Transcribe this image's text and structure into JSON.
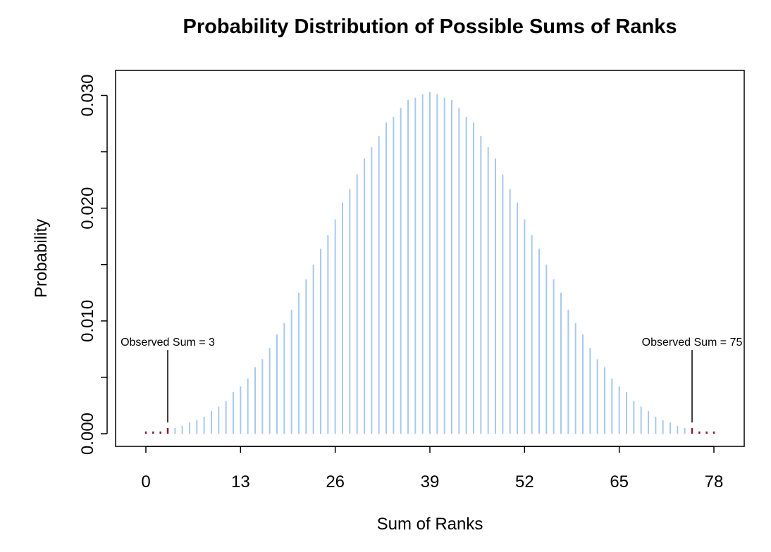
{
  "chart_data": {
    "type": "bar",
    "title": "Probability Distribution of Possible Sums of Ranks",
    "xlabel": "Sum of Ranks",
    "ylabel": "Probability",
    "xlim": [
      0,
      78
    ],
    "ylim": [
      0,
      0.0305
    ],
    "x_ticks": [
      0,
      13,
      26,
      39,
      52,
      65,
      78
    ],
    "y_ticks": [
      0.0,
      0.01,
      0.02,
      0.03
    ],
    "y_tick_labels": [
      "0.000",
      "0.010",
      "0.020",
      "0.030"
    ],
    "x": [
      0,
      1,
      2,
      3,
      4,
      5,
      6,
      7,
      8,
      9,
      10,
      11,
      12,
      13,
      14,
      15,
      16,
      17,
      18,
      19,
      20,
      21,
      22,
      23,
      24,
      25,
      26,
      27,
      28,
      29,
      30,
      31,
      32,
      33,
      34,
      35,
      36,
      37,
      38,
      39,
      40,
      41,
      42,
      43,
      44,
      45,
      46,
      47,
      48,
      49,
      50,
      51,
      52,
      53,
      54,
      55,
      56,
      57,
      58,
      59,
      60,
      61,
      62,
      63,
      64,
      65,
      66,
      67,
      68,
      69,
      70,
      71,
      72,
      73,
      74,
      75,
      76,
      77,
      78
    ],
    "values": [
      0.0002,
      0.0002,
      0.0002,
      0.0005,
      0.0005,
      0.0007,
      0.001,
      0.0012,
      0.0015,
      0.002,
      0.0024,
      0.0029,
      0.0037,
      0.0042,
      0.0049,
      0.0059,
      0.0066,
      0.0076,
      0.0088,
      0.0098,
      0.011,
      0.0125,
      0.0137,
      0.015,
      0.0164,
      0.0176,
      0.019,
      0.0205,
      0.0217,
      0.023,
      0.0244,
      0.0254,
      0.0264,
      0.0276,
      0.0281,
      0.0289,
      0.0296,
      0.0298,
      0.0301,
      0.0303,
      0.0301,
      0.0298,
      0.0296,
      0.0289,
      0.0281,
      0.0276,
      0.0264,
      0.0254,
      0.0244,
      0.023,
      0.0217,
      0.0205,
      0.019,
      0.0176,
      0.0164,
      0.015,
      0.0137,
      0.0125,
      0.011,
      0.0098,
      0.0088,
      0.0076,
      0.0066,
      0.0059,
      0.0049,
      0.0042,
      0.0037,
      0.0029,
      0.0024,
      0.002,
      0.0015,
      0.0012,
      0.001,
      0.0007,
      0.0005,
      0.0005,
      0.0002,
      0.0002,
      0.0002
    ],
    "extreme_x": [
      0,
      1,
      2,
      3,
      75,
      76,
      77,
      78
    ],
    "colors": {
      "bar": "#a9c8ee",
      "extreme": "#8b1c2c",
      "axis": "#000000"
    },
    "annotations": [
      {
        "text": "Observed Sum = 3",
        "x": 3,
        "label_y": 0.0078
      },
      {
        "text": "Observed Sum = 75",
        "x": 75,
        "label_y": 0.0078
      }
    ],
    "grid": false,
    "legend": "none"
  }
}
